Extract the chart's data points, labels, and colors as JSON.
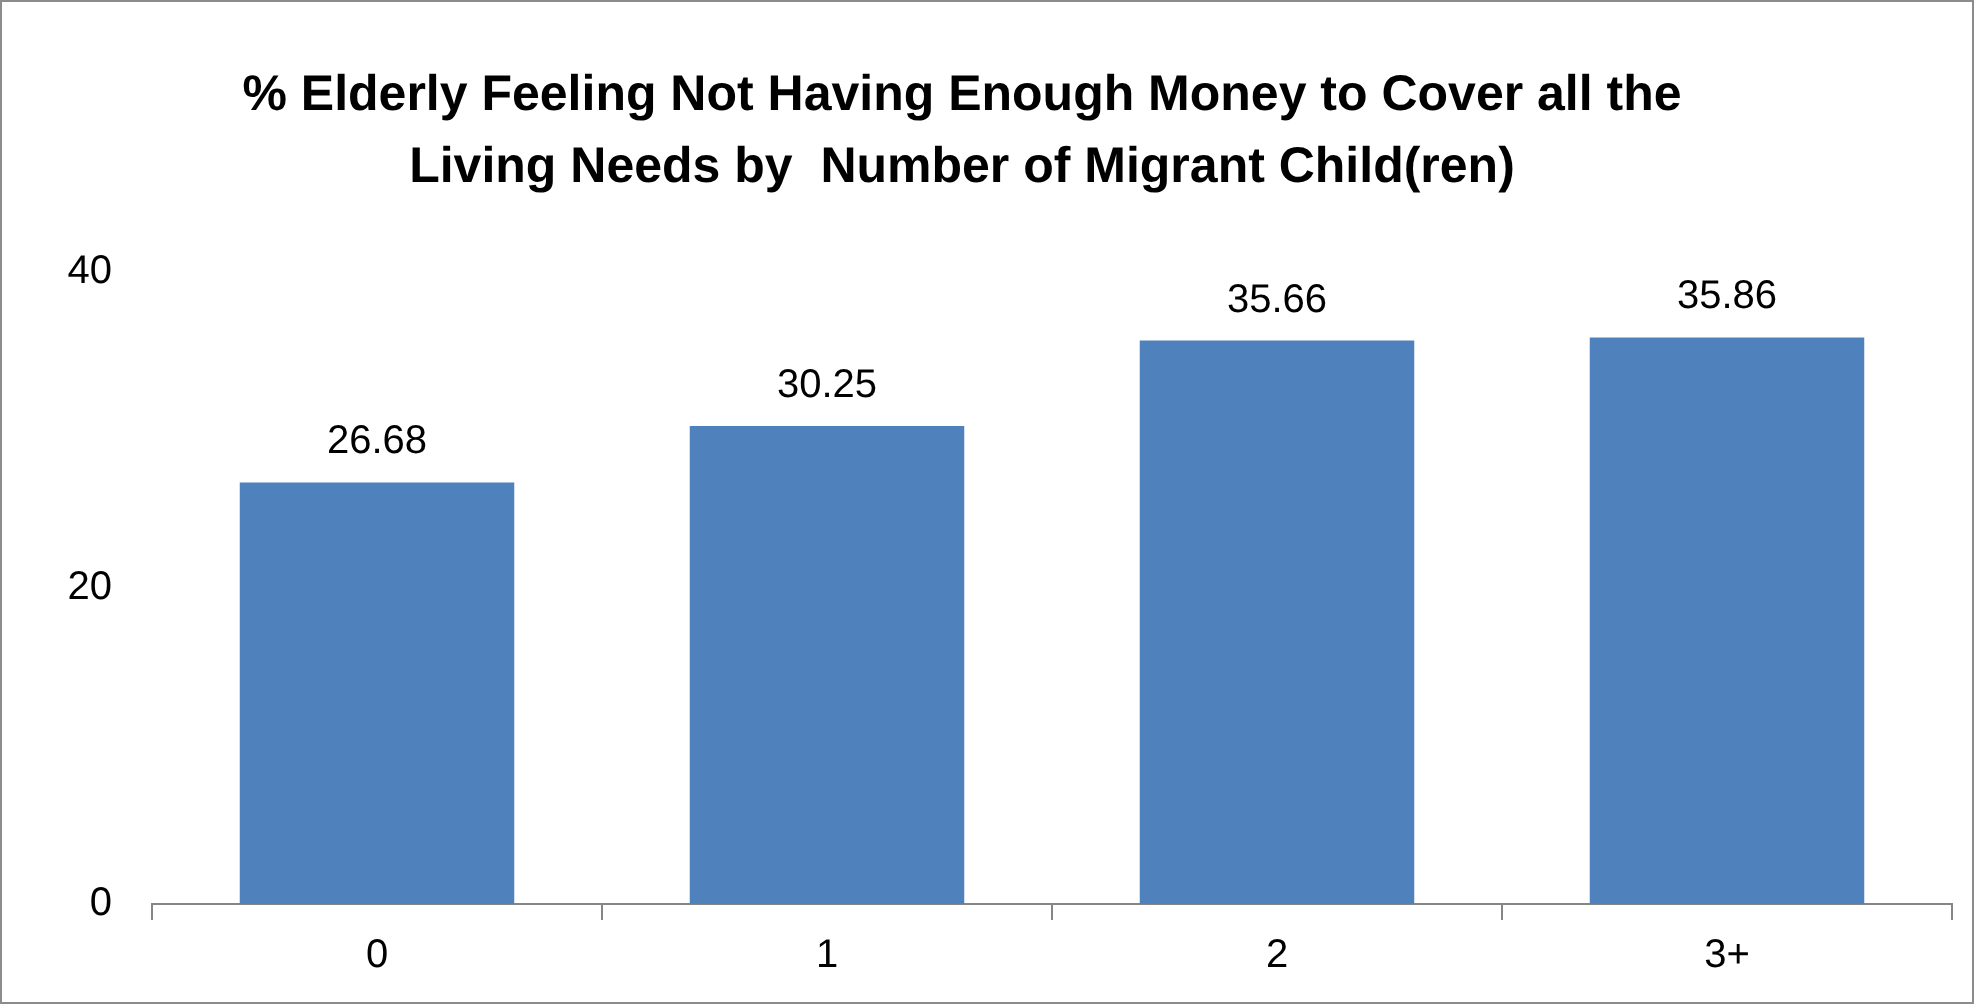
{
  "chart_data": {
    "type": "bar",
    "title": "% Elderly Feeling Not Having Enough Money to Cover all the Living Needs by  Number of Migrant Child(ren)",
    "categories": [
      "0",
      "1",
      "2",
      "3+"
    ],
    "values": [
      26.68,
      30.25,
      35.66,
      35.86
    ],
    "color": "#4f81bd",
    "ylim": [
      0,
      40
    ],
    "yticks": [
      0,
      20,
      40
    ],
    "grid": false,
    "legend": false,
    "data_labels": true
  }
}
